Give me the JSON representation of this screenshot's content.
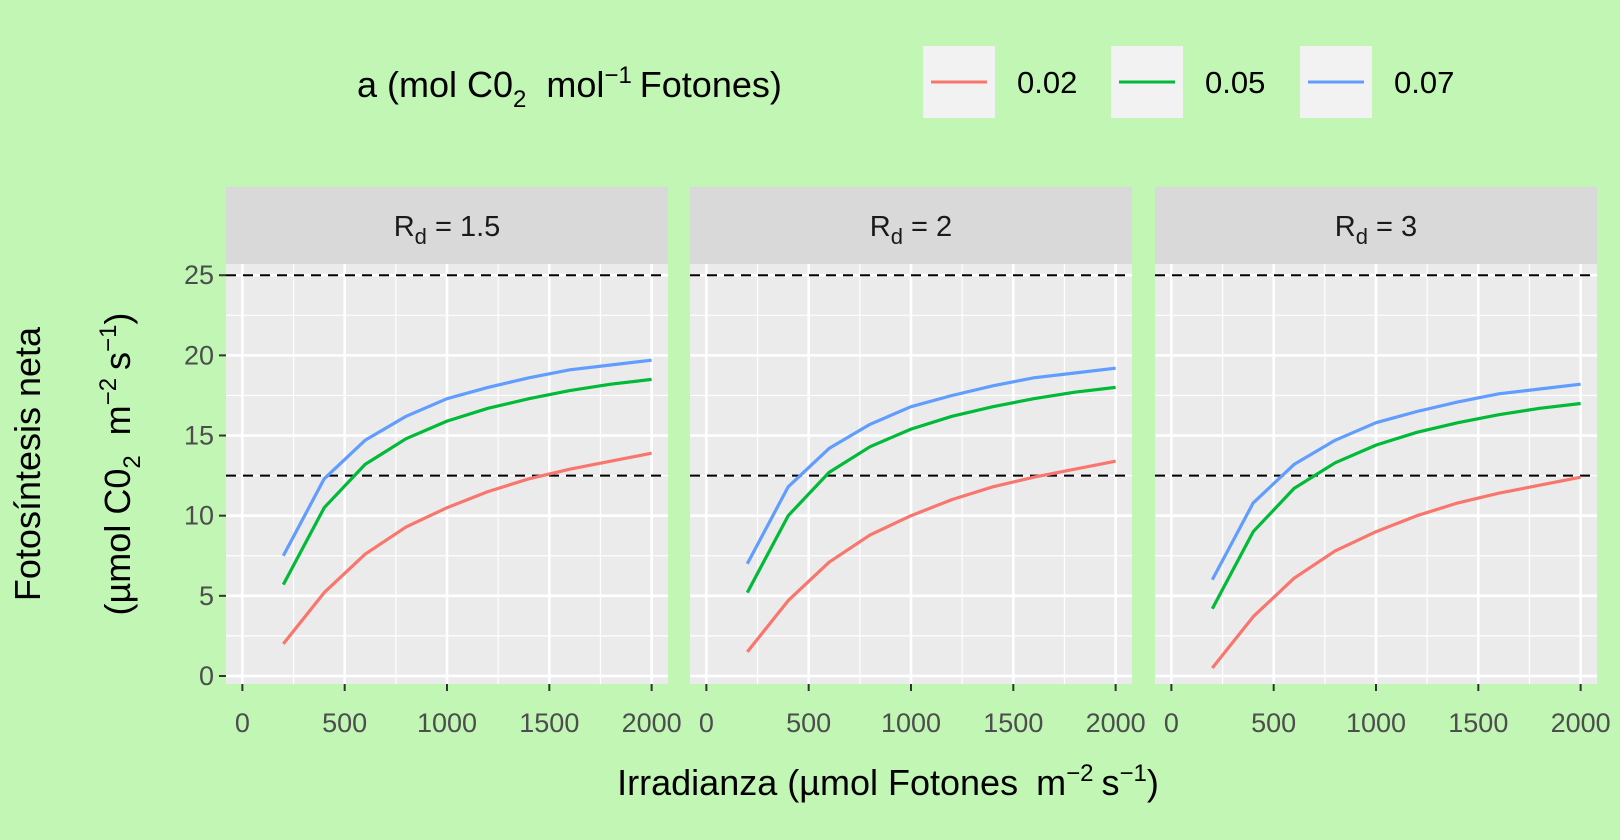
{
  "chart_data": {
    "type": "line",
    "legend": {
      "title": "a (mol C0_2 mol^-1 Fotones)",
      "title_parts": {
        "a": "a (mol C0",
        "b": "2",
        "c": "mol",
        "d": "−1",
        "e": "Fotones)"
      },
      "position": "top"
    },
    "xlabel": "Irradianza (µmol Fotones m^-2 s^-1)",
    "xlabel_parts": {
      "a": "Irradianza (",
      "mu": "µ",
      "b": "mol Fotones",
      "c": "m",
      "d": "−2",
      "e": "s",
      "f": "−1",
      "g": ")"
    },
    "ylabel": "Fotosíntesis neta (µmol C0_2 m^-2 s^-1)",
    "ylabel_parts": {
      "line1": "Fotosíntesis neta",
      "a": "(",
      "mu": "µ",
      "b": "mol C0",
      "c": "2",
      "d": "m",
      "e": "−2",
      "f": "s",
      "g": "−1",
      "h": ")"
    },
    "xlim": [
      -80,
      2080
    ],
    "ylim": [
      -0.5,
      25.7
    ],
    "x_ticks": [
      "0",
      "500",
      "1000",
      "1500",
      "2000"
    ],
    "x_tick_values": [
      0,
      500,
      1000,
      1500,
      2000
    ],
    "y_ticks": [
      "0",
      "5",
      "10",
      "15",
      "20",
      "25"
    ],
    "y_tick_values": [
      0,
      5,
      10,
      15,
      20,
      25
    ],
    "grid": true,
    "reference_lines_y": [
      25,
      12.5
    ],
    "x": [
      200,
      400,
      600,
      800,
      1000,
      1200,
      1400,
      1600,
      1800,
      2000
    ],
    "series_colors": {
      "0.02": "#f8766d",
      "0.05": "#00ba38",
      "0.07": "#619cff"
    },
    "facets": [
      {
        "label_parts": {
          "r": "R",
          "sub": "d",
          "rest": " = 1.5"
        },
        "series": [
          {
            "name": "0.02",
            "values": [
              2.0,
              5.2,
              7.6,
              9.3,
              10.5,
              11.5,
              12.3,
              12.9,
              13.4,
              13.9
            ]
          },
          {
            "name": "0.05",
            "values": [
              5.7,
              10.5,
              13.2,
              14.8,
              15.9,
              16.7,
              17.3,
              17.8,
              18.2,
              18.5
            ]
          },
          {
            "name": "0.07",
            "values": [
              7.5,
              12.3,
              14.7,
              16.2,
              17.3,
              18.0,
              18.6,
              19.1,
              19.4,
              19.7
            ]
          }
        ]
      },
      {
        "label_parts": {
          "r": "R",
          "sub": "d",
          "rest": " = 2"
        },
        "series": [
          {
            "name": "0.02",
            "values": [
              1.5,
              4.7,
              7.1,
              8.8,
              10.0,
              11.0,
              11.8,
              12.4,
              12.9,
              13.4
            ]
          },
          {
            "name": "0.05",
            "values": [
              5.2,
              10.0,
              12.7,
              14.3,
              15.4,
              16.2,
              16.8,
              17.3,
              17.7,
              18.0
            ]
          },
          {
            "name": "0.07",
            "values": [
              7.0,
              11.8,
              14.2,
              15.7,
              16.8,
              17.5,
              18.1,
              18.6,
              18.9,
              19.2
            ]
          }
        ]
      },
      {
        "label_parts": {
          "r": "R",
          "sub": "d",
          "rest": " = 3"
        },
        "series": [
          {
            "name": "0.02",
            "values": [
              0.5,
              3.7,
              6.1,
              7.8,
              9.0,
              10.0,
              10.8,
              11.4,
              11.9,
              12.4
            ]
          },
          {
            "name": "0.05",
            "values": [
              4.2,
              9.0,
              11.7,
              13.3,
              14.4,
              15.2,
              15.8,
              16.3,
              16.7,
              17.0
            ]
          },
          {
            "name": "0.07",
            "values": [
              6.0,
              10.8,
              13.2,
              14.7,
              15.8,
              16.5,
              17.1,
              17.6,
              17.9,
              18.2
            ]
          }
        ]
      }
    ]
  }
}
